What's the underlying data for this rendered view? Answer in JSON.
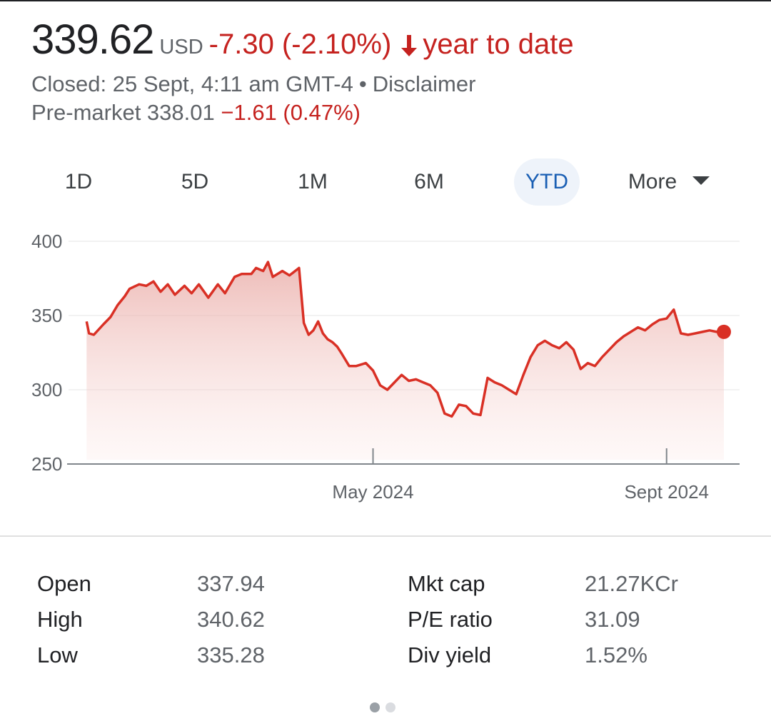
{
  "header": {
    "price": "339.62",
    "currency": "USD",
    "change": "-7.30 (-2.10%)",
    "period": "year to date",
    "closed_text": "Closed: 25 Sept, 4:11 am GMT-4",
    "separator": "•",
    "disclaimer": "Disclaimer",
    "premarket_label": "Pre-market 338.01",
    "premarket_change": "−1.61 (0.47%)"
  },
  "tabs": [
    {
      "label": "1D"
    },
    {
      "label": "5D"
    },
    {
      "label": "1M"
    },
    {
      "label": "6M"
    },
    {
      "label": "YTD"
    },
    {
      "label": "More"
    }
  ],
  "active_tab": "YTD",
  "colors": {
    "line": "#d93025",
    "negative": "#c5221f",
    "active_tab": "#1a5fb4"
  },
  "chart_data": {
    "type": "area",
    "title": "",
    "xlabel": "",
    "ylabel": "",
    "ylim": [
      250,
      400
    ],
    "yticks": [
      "400",
      "350",
      "300",
      "250"
    ],
    "ytick_values": [
      400,
      350,
      300,
      250
    ],
    "xticks": [
      {
        "label": "May 2024",
        "date": "2024-05-01"
      },
      {
        "label": "Sept 2024",
        "date": "2024-09-01"
      }
    ],
    "grid": true,
    "series": [
      {
        "x": [
          "2024-01-02",
          "2024-01-03",
          "2024-01-05",
          "2024-01-09",
          "2024-01-12",
          "2024-01-15",
          "2024-01-18",
          "2024-01-20",
          "2024-01-24",
          "2024-01-27",
          "2024-01-30",
          "2024-02-02",
          "2024-02-05",
          "2024-02-08",
          "2024-02-12",
          "2024-02-15",
          "2024-02-18",
          "2024-02-22",
          "2024-02-26",
          "2024-02-29",
          "2024-03-04",
          "2024-03-07",
          "2024-03-11",
          "2024-03-13",
          "2024-03-16",
          "2024-03-18",
          "2024-03-20",
          "2024-03-24",
          "2024-03-27",
          "2024-03-31",
          "2024-04-02",
          "2024-04-04",
          "2024-04-06",
          "2024-04-08",
          "2024-04-10",
          "2024-04-12",
          "2024-04-14",
          "2024-04-16",
          "2024-04-18",
          "2024-04-21",
          "2024-04-24",
          "2024-04-28",
          "2024-05-01",
          "2024-05-04",
          "2024-05-07",
          "2024-05-10",
          "2024-05-13",
          "2024-05-16",
          "2024-05-19",
          "2024-05-22",
          "2024-05-25",
          "2024-05-28",
          "2024-05-31",
          "2024-06-03",
          "2024-06-06",
          "2024-06-09",
          "2024-06-12",
          "2024-06-15",
          "2024-06-18",
          "2024-06-21",
          "2024-06-24",
          "2024-06-27",
          "2024-06-30",
          "2024-07-03",
          "2024-07-06",
          "2024-07-09",
          "2024-07-12",
          "2024-07-15",
          "2024-07-18",
          "2024-07-21",
          "2024-07-24",
          "2024-07-27",
          "2024-07-30",
          "2024-08-02",
          "2024-08-05",
          "2024-08-08",
          "2024-08-11",
          "2024-08-14",
          "2024-08-17",
          "2024-08-20",
          "2024-08-23",
          "2024-08-26",
          "2024-08-29",
          "2024-09-01",
          "2024-09-04",
          "2024-09-07",
          "2024-09-10",
          "2024-09-13",
          "2024-09-16",
          "2024-09-19",
          "2024-09-22",
          "2024-09-25"
        ],
        "values": [
          346,
          338,
          337,
          344,
          349,
          357,
          363,
          368,
          371,
          370,
          373,
          366,
          371,
          364,
          370,
          365,
          371,
          362,
          371,
          365,
          376,
          378,
          378,
          382,
          380,
          386,
          376,
          380,
          377,
          382,
          345,
          337,
          340,
          346,
          338,
          334,
          332,
          329,
          324,
          316,
          316,
          318,
          313,
          303,
          300,
          305,
          310,
          306,
          307,
          305,
          303,
          298,
          284,
          282,
          290,
          289,
          284,
          283,
          308,
          305,
          303,
          300,
          297,
          310,
          322,
          330,
          333,
          330,
          328,
          332,
          327,
          314,
          318,
          316,
          322,
          327,
          332,
          336,
          339,
          342,
          340,
          344,
          347,
          348,
          354,
          338,
          337,
          338,
          339,
          340,
          339,
          339
        ]
      }
    ]
  },
  "stats": {
    "left": [
      {
        "label": "Open",
        "value": "337.94"
      },
      {
        "label": "High",
        "value": "340.62"
      },
      {
        "label": "Low",
        "value": "335.28"
      }
    ],
    "right": [
      {
        "label": "Mkt cap",
        "value": "21.27KCr"
      },
      {
        "label": "P/E ratio",
        "value": "31.09"
      },
      {
        "label": "Div yield",
        "value": "1.52%"
      }
    ]
  },
  "pager": {
    "count": 2,
    "active": 0
  }
}
